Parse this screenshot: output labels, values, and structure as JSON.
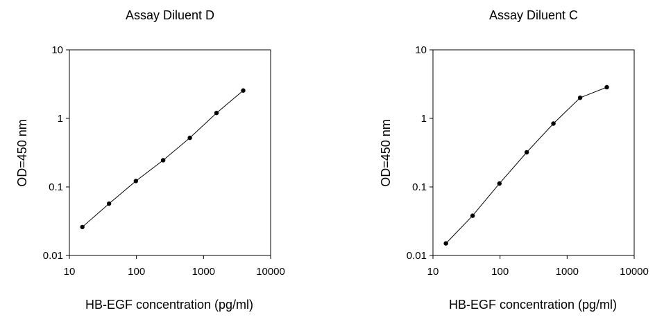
{
  "chart_data": [
    {
      "type": "line",
      "title": "Assay Diluent D",
      "xlabel": "HB-EGF concentration (pg/ml)",
      "ylabel": "OD=450 nm",
      "xscale": "log",
      "yscale": "log",
      "xlim": [
        10,
        10000
      ],
      "ylim": [
        0.01,
        10
      ],
      "xticks": [
        "10",
        "100",
        "1000",
        "10000"
      ],
      "yticks": [
        "0.01",
        "0.1",
        "1",
        "10"
      ],
      "grid": false,
      "legend": "none",
      "series": [
        {
          "x": [
            15.6,
            39,
            98,
            250,
            625,
            1563,
            3906
          ],
          "y": [
            0.026,
            0.057,
            0.122,
            0.245,
            0.52,
            1.2,
            2.55
          ]
        }
      ]
    },
    {
      "type": "line",
      "title": "Assay Diluent C",
      "xlabel": "HB-EGF concentration (pg/ml)",
      "ylabel": "OD=450 nm",
      "xscale": "log",
      "yscale": "log",
      "xlim": [
        10,
        10000
      ],
      "ylim": [
        0.01,
        10
      ],
      "xticks": [
        "10",
        "100",
        "1000",
        "10000"
      ],
      "yticks": [
        "0.01",
        "0.1",
        "1",
        "10"
      ],
      "grid": false,
      "legend": "none",
      "series": [
        {
          "x": [
            15.6,
            39,
            98,
            250,
            625,
            1563,
            3906
          ],
          "y": [
            0.015,
            0.038,
            0.112,
            0.32,
            0.84,
            2.0,
            2.85
          ]
        }
      ]
    }
  ]
}
